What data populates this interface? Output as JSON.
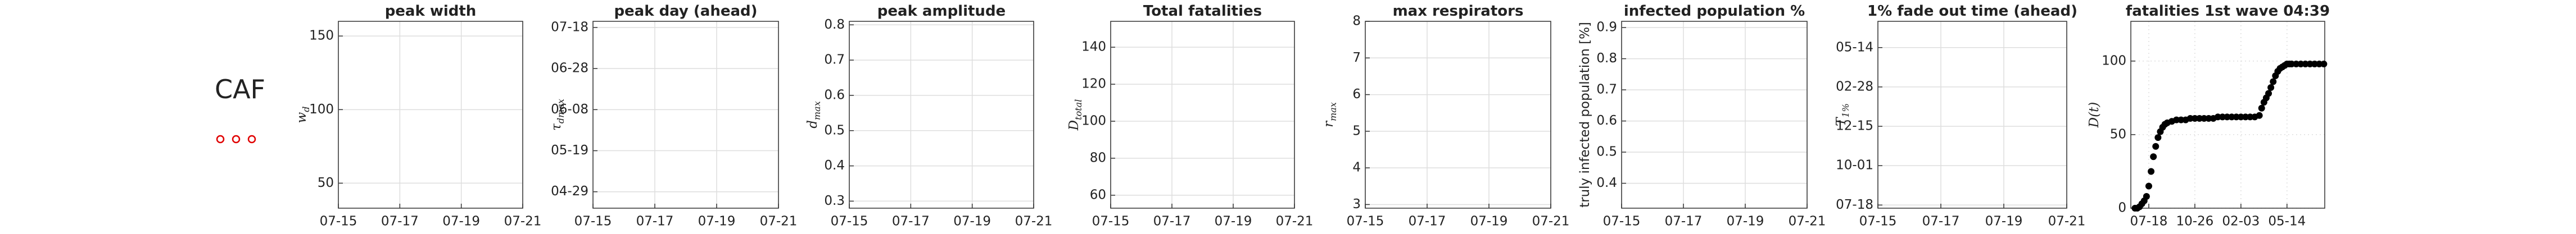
{
  "label": "CAF",
  "chart_data": [
    {
      "type": "line",
      "title": "peak width",
      "ylabel": "w_d",
      "grid": true,
      "xlim": [
        0,
        6
      ],
      "xticks": [
        {
          "value": 0,
          "label": "07-15"
        },
        {
          "value": 2,
          "label": "07-17"
        },
        {
          "value": 4,
          "label": "07-19"
        },
        {
          "value": 6,
          "label": "07-21"
        }
      ],
      "ylim": [
        33,
        160
      ],
      "yticks": [
        50,
        100,
        150
      ]
    },
    {
      "type": "line",
      "title": "peak day (ahead)",
      "ylabel": "τ_dmax",
      "grid": true,
      "xlim": [
        0,
        6
      ],
      "xticks": [
        {
          "value": 0,
          "label": "07-15"
        },
        {
          "value": 2,
          "label": "07-17"
        },
        {
          "value": 4,
          "label": "07-19"
        },
        {
          "value": 6,
          "label": "07-21"
        }
      ],
      "ylim": [
        -88,
        3
      ],
      "yticks": [
        {
          "value": -80,
          "label": "04-29"
        },
        {
          "value": -60,
          "label": "05-19"
        },
        {
          "value": -40,
          "label": "06-08"
        },
        {
          "value": -20,
          "label": "06-28"
        },
        {
          "value": 0,
          "label": "07-18"
        }
      ]
    },
    {
      "type": "line",
      "title": "peak amplitude",
      "ylabel": "d_max",
      "grid": true,
      "xlim": [
        0,
        6
      ],
      "xticks": [
        {
          "value": 0,
          "label": "07-15"
        },
        {
          "value": 2,
          "label": "07-17"
        },
        {
          "value": 4,
          "label": "07-19"
        },
        {
          "value": 6,
          "label": "07-21"
        }
      ],
      "ylim": [
        0.28,
        0.81
      ],
      "yticks": [
        0.3,
        0.4,
        0.5,
        0.6,
        0.7,
        0.8
      ]
    },
    {
      "type": "line",
      "title": "Total fatalities",
      "ylabel": "D_total",
      "grid": true,
      "xlim": [
        0,
        6
      ],
      "xticks": [
        {
          "value": 0,
          "label": "07-15"
        },
        {
          "value": 2,
          "label": "07-17"
        },
        {
          "value": 4,
          "label": "07-19"
        },
        {
          "value": 6,
          "label": "07-21"
        }
      ],
      "ylim": [
        53,
        154
      ],
      "yticks": [
        60,
        80,
        100,
        120,
        140
      ]
    },
    {
      "type": "line",
      "title": "max respirators",
      "ylabel": "r_max",
      "grid": true,
      "xlim": [
        0,
        6
      ],
      "xticks": [
        {
          "value": 0,
          "label": "07-15"
        },
        {
          "value": 2,
          "label": "07-17"
        },
        {
          "value": 4,
          "label": "07-19"
        },
        {
          "value": 6,
          "label": "07-21"
        }
      ],
      "ylim": [
        2.9,
        8
      ],
      "yticks": [
        3,
        4,
        5,
        6,
        7,
        8
      ]
    },
    {
      "type": "line",
      "title": "infected population %",
      "ylabel": "truly infected population [%]",
      "grid": true,
      "xlim": [
        0,
        6
      ],
      "xticks": [
        {
          "value": 0,
          "label": "07-15"
        },
        {
          "value": 2,
          "label": "07-17"
        },
        {
          "value": 4,
          "label": "07-19"
        },
        {
          "value": 6,
          "label": "07-21"
        }
      ],
      "ylim": [
        0.32,
        0.92
      ],
      "yticks": [
        0.4,
        0.5,
        0.6,
        0.7,
        0.8,
        0.9
      ]
    },
    {
      "type": "line",
      "title": "1% fade out time (ahead)",
      "ylabel": "T_1%",
      "grid": true,
      "xlim": [
        0,
        6
      ],
      "xticks": [
        {
          "value": 0,
          "label": "07-15"
        },
        {
          "value": 2,
          "label": "07-17"
        },
        {
          "value": 4,
          "label": "07-19"
        },
        {
          "value": 6,
          "label": "07-21"
        }
      ],
      "ylim": [
        -6,
        350
      ],
      "yticks": [
        {
          "value": 0,
          "label": "07-18"
        },
        {
          "value": 75,
          "label": "10-01"
        },
        {
          "value": 150,
          "label": "12-15"
        },
        {
          "value": 225,
          "label": "02-28"
        },
        {
          "value": 300,
          "label": "05-14"
        }
      ]
    },
    {
      "type": "scatter",
      "title": "fatalities 1st wave 04:39",
      "ylabel": "D(t)",
      "grid": true,
      "color": "#000000",
      "xlim": [
        -39,
        382
      ],
      "xticks": [
        {
          "value": 0,
          "label": "07-18"
        },
        {
          "value": 100,
          "label": "10-26"
        },
        {
          "value": 200,
          "label": "02-03"
        },
        {
          "value": 300,
          "label": "05-14"
        }
      ],
      "ylim": [
        0,
        127
      ],
      "yticks": [
        0,
        50,
        100
      ],
      "x": [
        -30,
        -25,
        -20,
        -15,
        -10,
        -5,
        0,
        5,
        10,
        15,
        20,
        25,
        30,
        35,
        40,
        50,
        60,
        70,
        80,
        90,
        100,
        110,
        120,
        130,
        140,
        150,
        160,
        170,
        180,
        190,
        200,
        210,
        220,
        230,
        240,
        245,
        250,
        255,
        260,
        265,
        270,
        275,
        280,
        285,
        290,
        295,
        300,
        305,
        310,
        320,
        330,
        340,
        350,
        360,
        370,
        380
      ],
      "values": [
        0,
        0,
        1,
        3,
        5,
        8,
        15,
        25,
        35,
        42,
        48,
        52,
        55,
        57,
        58,
        59,
        60,
        60,
        60,
        61,
        61,
        61,
        61,
        61,
        61,
        62,
        62,
        62,
        62,
        62,
        62,
        62,
        62,
        62,
        63,
        68,
        72,
        75,
        78,
        82,
        86,
        90,
        93,
        95,
        96,
        97,
        98,
        98,
        98,
        98,
        98,
        98,
        98,
        98,
        98,
        98
      ]
    }
  ]
}
